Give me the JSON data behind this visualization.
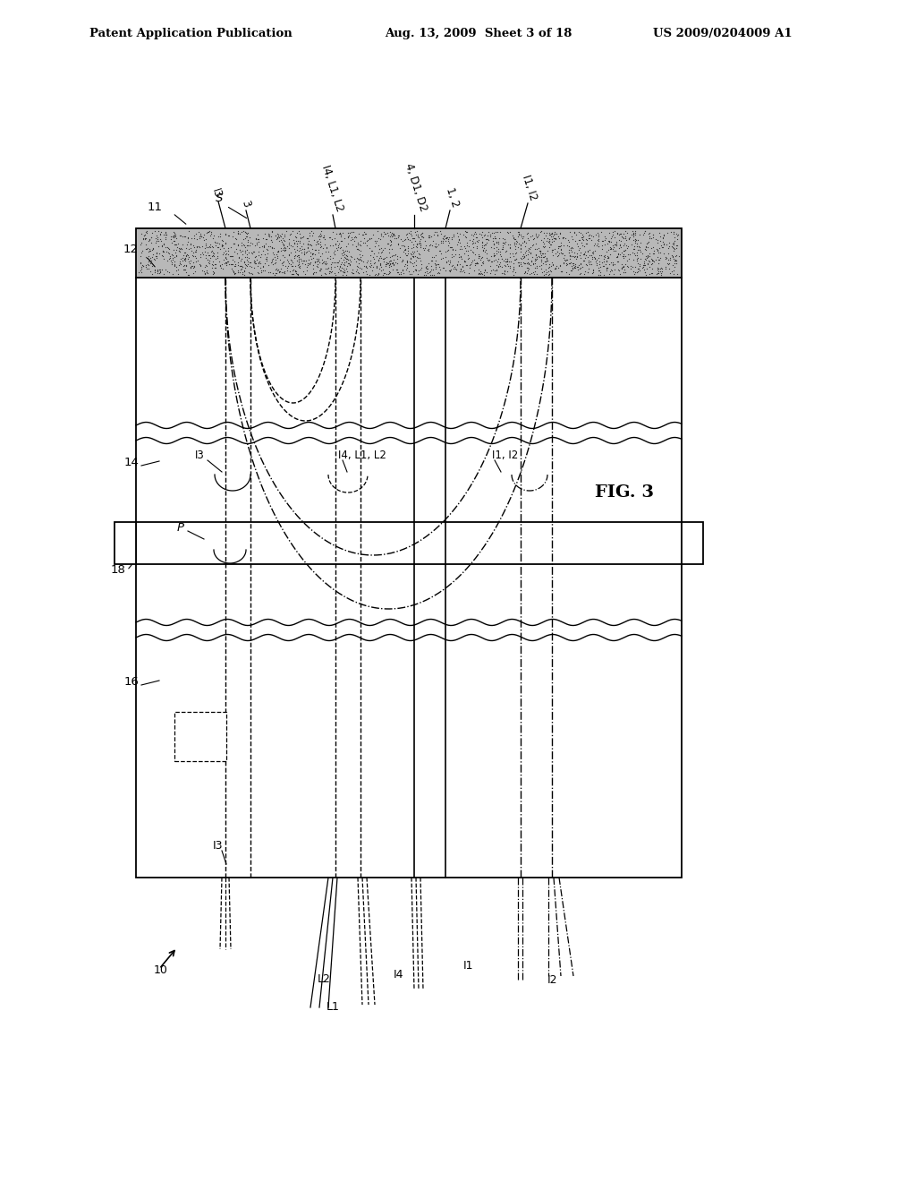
{
  "header_left": "Patent Application Publication",
  "header_mid": "Aug. 13, 2009  Sheet 3 of 18",
  "header_right": "US 2009/0204009 A1",
  "fig_label": "FIG. 3",
  "bg_color": "#ffffff",
  "line_color": "#000000"
}
